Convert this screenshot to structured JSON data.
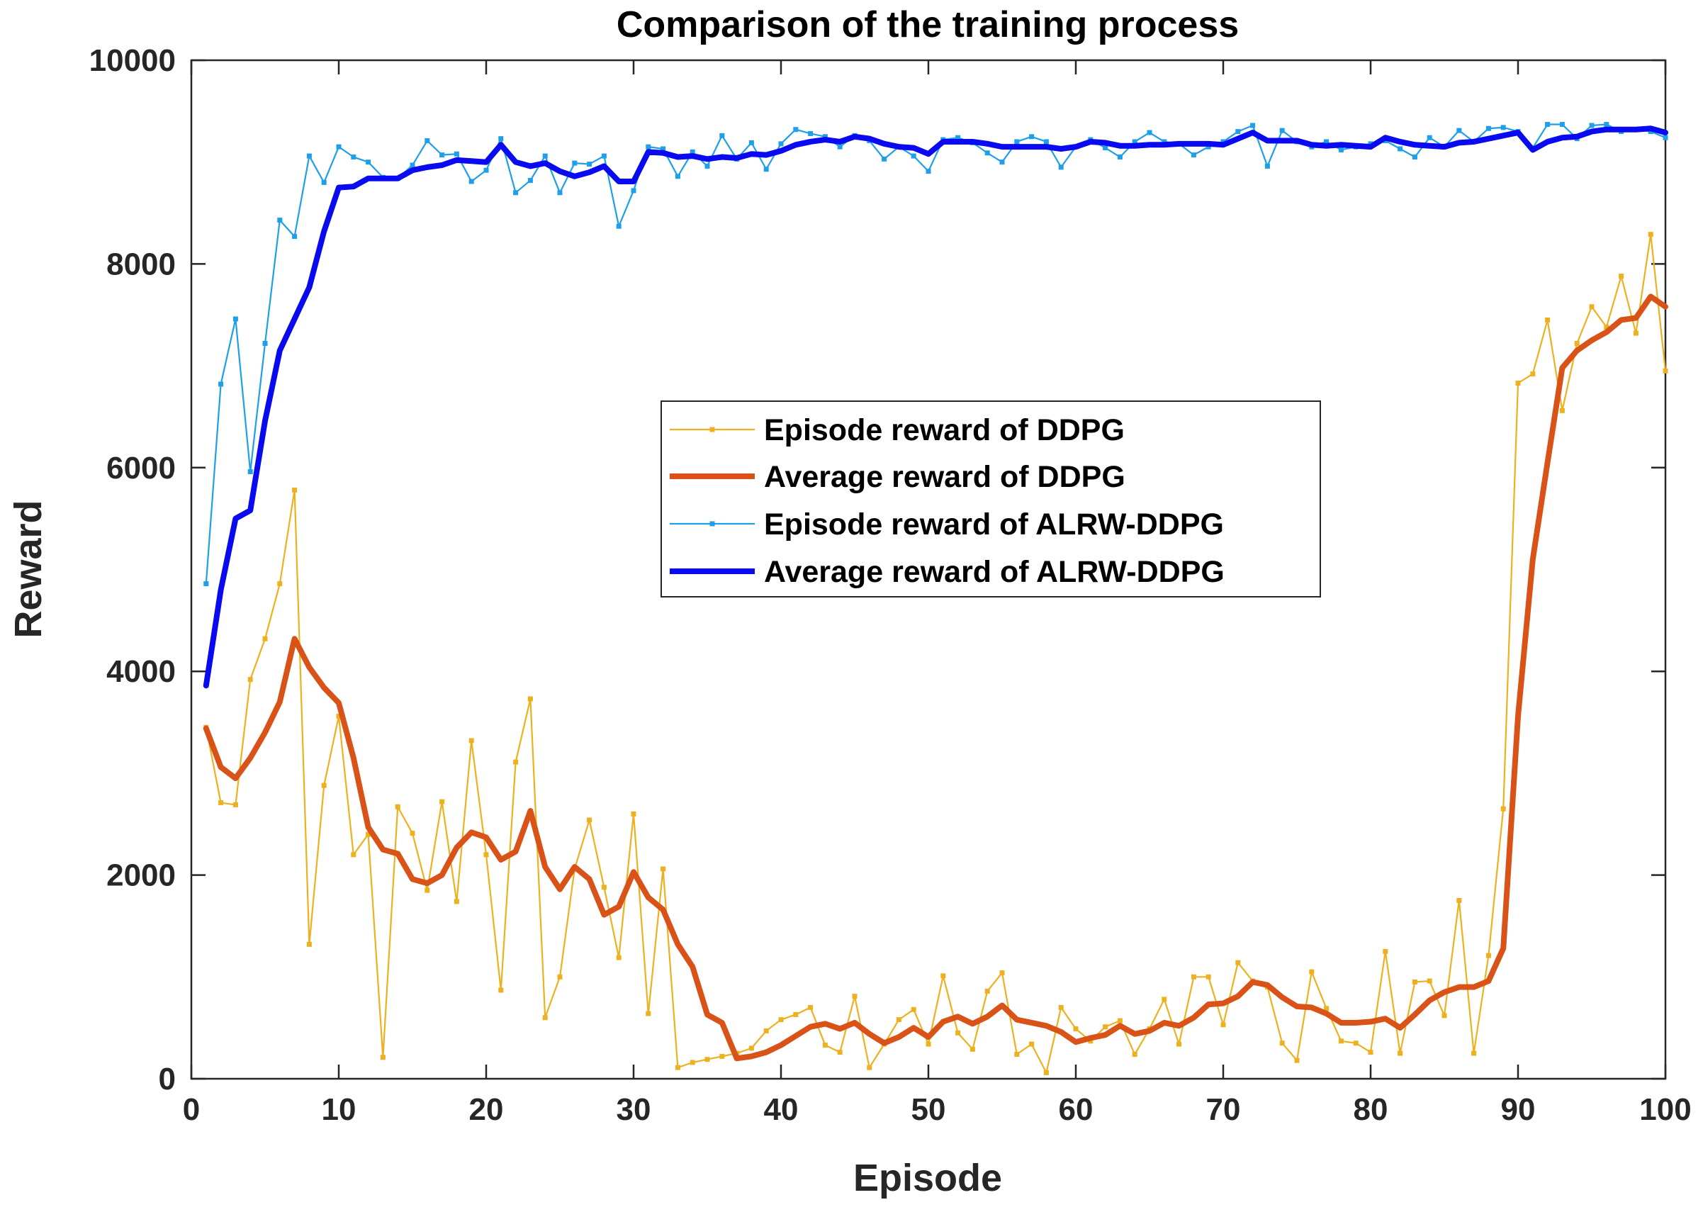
{
  "chart_data": {
    "type": "line",
    "title": "Comparison of the training process",
    "xlabel": "Episode",
    "ylabel": "Reward",
    "xlim": [
      0,
      100
    ],
    "ylim": [
      0,
      10000
    ],
    "xticks": [
      0,
      10,
      20,
      30,
      40,
      50,
      60,
      70,
      80,
      90,
      100
    ],
    "yticks": [
      0,
      2000,
      4000,
      6000,
      8000,
      10000
    ],
    "grid": false,
    "legend_position": "center",
    "x": [
      1,
      2,
      3,
      4,
      5,
      6,
      7,
      8,
      9,
      10,
      11,
      12,
      13,
      14,
      15,
      16,
      17,
      18,
      19,
      20,
      21,
      22,
      23,
      24,
      25,
      26,
      27,
      28,
      29,
      30,
      31,
      32,
      33,
      34,
      35,
      36,
      37,
      38,
      39,
      40,
      41,
      42,
      43,
      44,
      45,
      46,
      47,
      48,
      49,
      50,
      51,
      52,
      53,
      54,
      55,
      56,
      57,
      58,
      59,
      60,
      61,
      62,
      63,
      64,
      65,
      66,
      67,
      68,
      69,
      70,
      71,
      72,
      73,
      74,
      75,
      76,
      77,
      78,
      79,
      80,
      81,
      82,
      83,
      84,
      85,
      86,
      87,
      88,
      89,
      90,
      91,
      92,
      93,
      94,
      95,
      96,
      97,
      98,
      99,
      100
    ],
    "series": [
      {
        "name": "Episode reward of DDPG",
        "color": "#EDB120",
        "style": "thin-marker",
        "values": [
          3450,
          2710,
          2690,
          3920,
          4320,
          4860,
          5780,
          1320,
          2880,
          3560,
          2200,
          2400,
          210,
          2670,
          2410,
          1850,
          2720,
          1740,
          3320,
          2200,
          870,
          3110,
          3730,
          600,
          1000,
          2060,
          2540,
          1880,
          1190,
          2600,
          640,
          2060,
          110,
          160,
          190,
          220,
          250,
          300,
          470,
          580,
          630,
          700,
          330,
          260,
          810,
          110,
          340,
          580,
          680,
          340,
          1010,
          450,
          290,
          860,
          1040,
          240,
          340,
          60,
          700,
          490,
          370,
          510,
          570,
          240,
          490,
          780,
          340,
          1000,
          1000,
          530,
          1140,
          960,
          900,
          350,
          180,
          1050,
          690,
          370,
          350,
          260,
          1250,
          250,
          950,
          960,
          620,
          1750,
          250,
          1210,
          2650,
          6830,
          6920,
          7450,
          6560,
          7220,
          7580,
          7380,
          7880,
          7320,
          8290,
          6950
        ]
      },
      {
        "name": "Average reward of DDPG",
        "color": "#D95319",
        "style": "thick",
        "values": [
          3440,
          3060,
          2950,
          3150,
          3400,
          3700,
          4320,
          4040,
          3840,
          3690,
          3150,
          2470,
          2250,
          2210,
          1960,
          1920,
          2000,
          2270,
          2420,
          2370,
          2150,
          2230,
          2630,
          2080,
          1860,
          2080,
          1960,
          1610,
          1690,
          2030,
          1780,
          1660,
          1320,
          1100,
          630,
          550,
          200,
          220,
          260,
          330,
          420,
          510,
          540,
          490,
          550,
          440,
          350,
          410,
          500,
          410,
          560,
          610,
          540,
          610,
          720,
          580,
          550,
          520,
          460,
          360,
          400,
          430,
          520,
          440,
          470,
          550,
          520,
          600,
          730,
          740,
          810,
          950,
          920,
          800,
          710,
          700,
          640,
          550,
          550,
          560,
          590,
          500,
          630,
          770,
          850,
          900,
          900,
          960,
          1280,
          3560,
          5100,
          6050,
          6980,
          7150,
          7250,
          7330,
          7450,
          7470,
          7680,
          7580
        ]
      },
      {
        "name": "Episode reward of ALRW-DDPG",
        "color": "#1E9FE8",
        "style": "thin-marker",
        "values": [
          4860,
          6820,
          7460,
          5960,
          7220,
          8430,
          8270,
          9060,
          8800,
          9150,
          9050,
          9000,
          8850,
          8840,
          8970,
          9210,
          9070,
          9080,
          8810,
          8920,
          9230,
          8700,
          8820,
          9060,
          8700,
          8990,
          8980,
          9060,
          8370,
          8720,
          9150,
          9130,
          8860,
          9100,
          8960,
          9260,
          9030,
          9190,
          8930,
          9180,
          9320,
          9280,
          9250,
          9150,
          9260,
          9210,
          9030,
          9150,
          9060,
          8910,
          9220,
          9240,
          9190,
          9090,
          9000,
          9200,
          9250,
          9200,
          8950,
          9150,
          9220,
          9140,
          9050,
          9200,
          9290,
          9200,
          9180,
          9070,
          9150,
          9200,
          9300,
          9360,
          8960,
          9310,
          9200,
          9150,
          9200,
          9120,
          9150,
          9180,
          9210,
          9130,
          9050,
          9240,
          9150,
          9310,
          9200,
          9330,
          9340,
          9300,
          9140,
          9370,
          9370,
          9230,
          9360,
          9370,
          9300,
          9320,
          9300,
          9240
        ]
      },
      {
        "name": "Average reward of ALRW-DDPG",
        "color": "#0A0AF0",
        "style": "thick",
        "values": [
          3860,
          4800,
          5500,
          5580,
          6460,
          7150,
          7460,
          7770,
          8320,
          8750,
          8760,
          8840,
          8840,
          8840,
          8920,
          8950,
          8970,
          9020,
          9010,
          9000,
          9170,
          9000,
          8960,
          8990,
          8910,
          8860,
          8900,
          8960,
          8810,
          8810,
          9100,
          9090,
          9050,
          9060,
          9030,
          9050,
          9040,
          9080,
          9070,
          9110,
          9170,
          9200,
          9220,
          9200,
          9250,
          9230,
          9180,
          9150,
          9140,
          9080,
          9200,
          9200,
          9200,
          9180,
          9150,
          9150,
          9150,
          9150,
          9130,
          9150,
          9200,
          9190,
          9160,
          9160,
          9170,
          9170,
          9180,
          9180,
          9180,
          9170,
          9230,
          9290,
          9210,
          9210,
          9210,
          9170,
          9160,
          9170,
          9160,
          9150,
          9240,
          9200,
          9170,
          9160,
          9150,
          9190,
          9200,
          9230,
          9260,
          9290,
          9120,
          9200,
          9240,
          9250,
          9300,
          9320,
          9320,
          9320,
          9330,
          9290
        ]
      }
    ]
  }
}
